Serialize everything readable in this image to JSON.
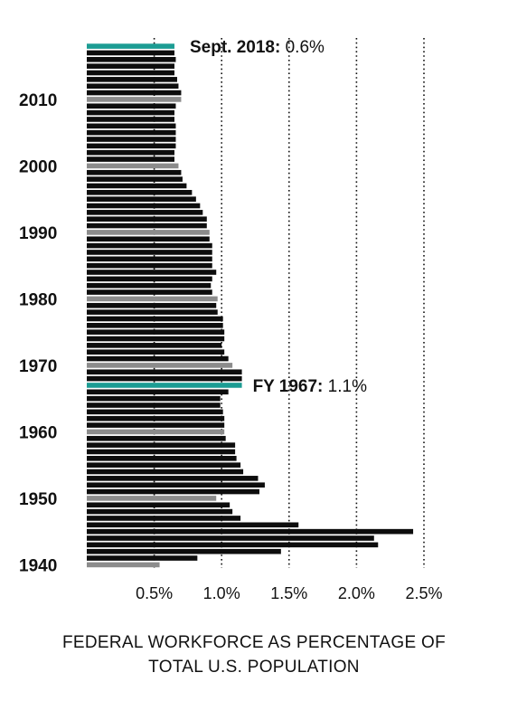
{
  "chart_data": {
    "type": "bar",
    "orientation": "horizontal",
    "title": "FEDERAL WORKFORCE AS PERCENTAGE OF TOTAL U.S. POPULATION",
    "title_lines": [
      "FEDERAL WORKFORCE AS PERCENTAGE OF",
      "TOTAL U.S. POPULATION"
    ],
    "xlim": [
      0.0,
      2.5
    ],
    "x_ticks": [
      {
        "value": 0.5,
        "label": "0.5%"
      },
      {
        "value": 1.0,
        "label": "1.0%"
      },
      {
        "value": 1.5,
        "label": "1.5%"
      },
      {
        "value": 2.0,
        "label": "2.0%"
      },
      {
        "value": 2.5,
        "label": "2.5%"
      }
    ],
    "grid": "vertical dotted lines at ticks",
    "years": [
      1940,
      1941,
      1942,
      1943,
      1944,
      1945,
      1946,
      1947,
      1948,
      1949,
      1950,
      1951,
      1952,
      1953,
      1954,
      1955,
      1956,
      1957,
      1958,
      1959,
      1960,
      1961,
      1962,
      1963,
      1964,
      1965,
      1966,
      1967,
      1968,
      1969,
      1970,
      1971,
      1972,
      1973,
      1974,
      1975,
      1976,
      1977,
      1978,
      1979,
      1980,
      1981,
      1982,
      1983,
      1984,
      1985,
      1986,
      1987,
      1988,
      1989,
      1990,
      1991,
      1992,
      1993,
      1994,
      1995,
      1996,
      1997,
      1998,
      1999,
      2000,
      2001,
      2002,
      2003,
      2004,
      2005,
      2006,
      2007,
      2008,
      2009,
      2010,
      2011,
      2012,
      2013,
      2014,
      2015,
      2016,
      2017,
      2018
    ],
    "values": [
      0.54,
      0.82,
      1.44,
      2.16,
      2.13,
      2.42,
      1.57,
      1.14,
      1.08,
      1.06,
      0.96,
      1.28,
      1.32,
      1.27,
      1.16,
      1.14,
      1.11,
      1.1,
      1.1,
      1.03,
      1.02,
      1.02,
      1.02,
      1.01,
      0.99,
      0.99,
      1.05,
      1.15,
      1.15,
      1.15,
      1.08,
      1.05,
      1.02,
      1.0,
      1.02,
      1.02,
      1.01,
      1.01,
      0.97,
      0.96,
      0.97,
      0.93,
      0.92,
      0.93,
      0.96,
      0.93,
      0.93,
      0.93,
      0.93,
      0.91,
      0.91,
      0.89,
      0.89,
      0.86,
      0.84,
      0.81,
      0.78,
      0.74,
      0.71,
      0.7,
      0.68,
      0.65,
      0.65,
      0.66,
      0.66,
      0.66,
      0.66,
      0.65,
      0.65,
      0.66,
      0.7,
      0.7,
      0.68,
      0.67,
      0.65,
      0.65,
      0.66,
      0.65,
      0.65
    ],
    "highlighted_years": [
      1940,
      1950,
      1960,
      1970,
      1980,
      1990,
      2000,
      2010
    ],
    "accent_years": [
      1967,
      2018
    ],
    "y_tick_labels": [
      {
        "year": 1940,
        "label": "1940"
      },
      {
        "year": 1950,
        "label": "1950"
      },
      {
        "year": 1960,
        "label": "1960"
      },
      {
        "year": 1970,
        "label": "1970"
      },
      {
        "year": 1980,
        "label": "1980"
      },
      {
        "year": 1990,
        "label": "1990"
      },
      {
        "year": 2000,
        "label": "2000"
      },
      {
        "year": 2010,
        "label": "2010"
      }
    ],
    "annotations": [
      {
        "year": 2018,
        "bold": "Sept. 2018:",
        "value_text": " 0.6%"
      },
      {
        "year": 1967,
        "bold": "FY 1967:",
        "value_text": " 1.1%"
      }
    ],
    "colors": {
      "default": "#0d0d0d",
      "decade": "#8c8c8c",
      "accent": "#1c9c93",
      "grid": "#111111",
      "text": "#111111"
    }
  }
}
